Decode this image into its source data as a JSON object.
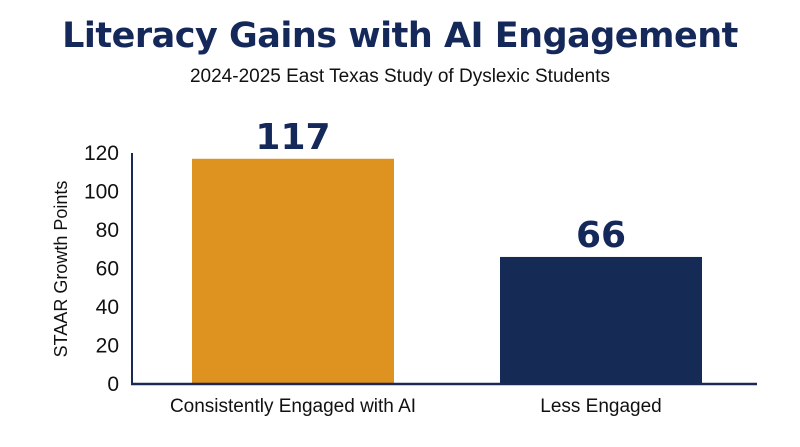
{
  "header": {
    "title": "Literacy Gains with AI Engagement",
    "subtitle": "2024-2025 East Texas Study of Dyslexic Students"
  },
  "chart_data": {
    "type": "bar",
    "title": "Literacy Gains with AI Engagement",
    "subtitle": "2024-2025 East Texas Study of Dyslexic Students",
    "categories": [
      "Consistently Engaged with AI",
      "Less Engaged"
    ],
    "values": [
      117,
      66
    ],
    "data_labels": [
      "117",
      "66"
    ],
    "colors": [
      "#de9320",
      "#152a55"
    ],
    "xlabel": "",
    "ylabel": "STAAR Growth Points",
    "ylim": [
      0,
      120
    ],
    "yticks": [
      0,
      20,
      40,
      60,
      80,
      100,
      120
    ],
    "grid": false,
    "legend": "none"
  }
}
